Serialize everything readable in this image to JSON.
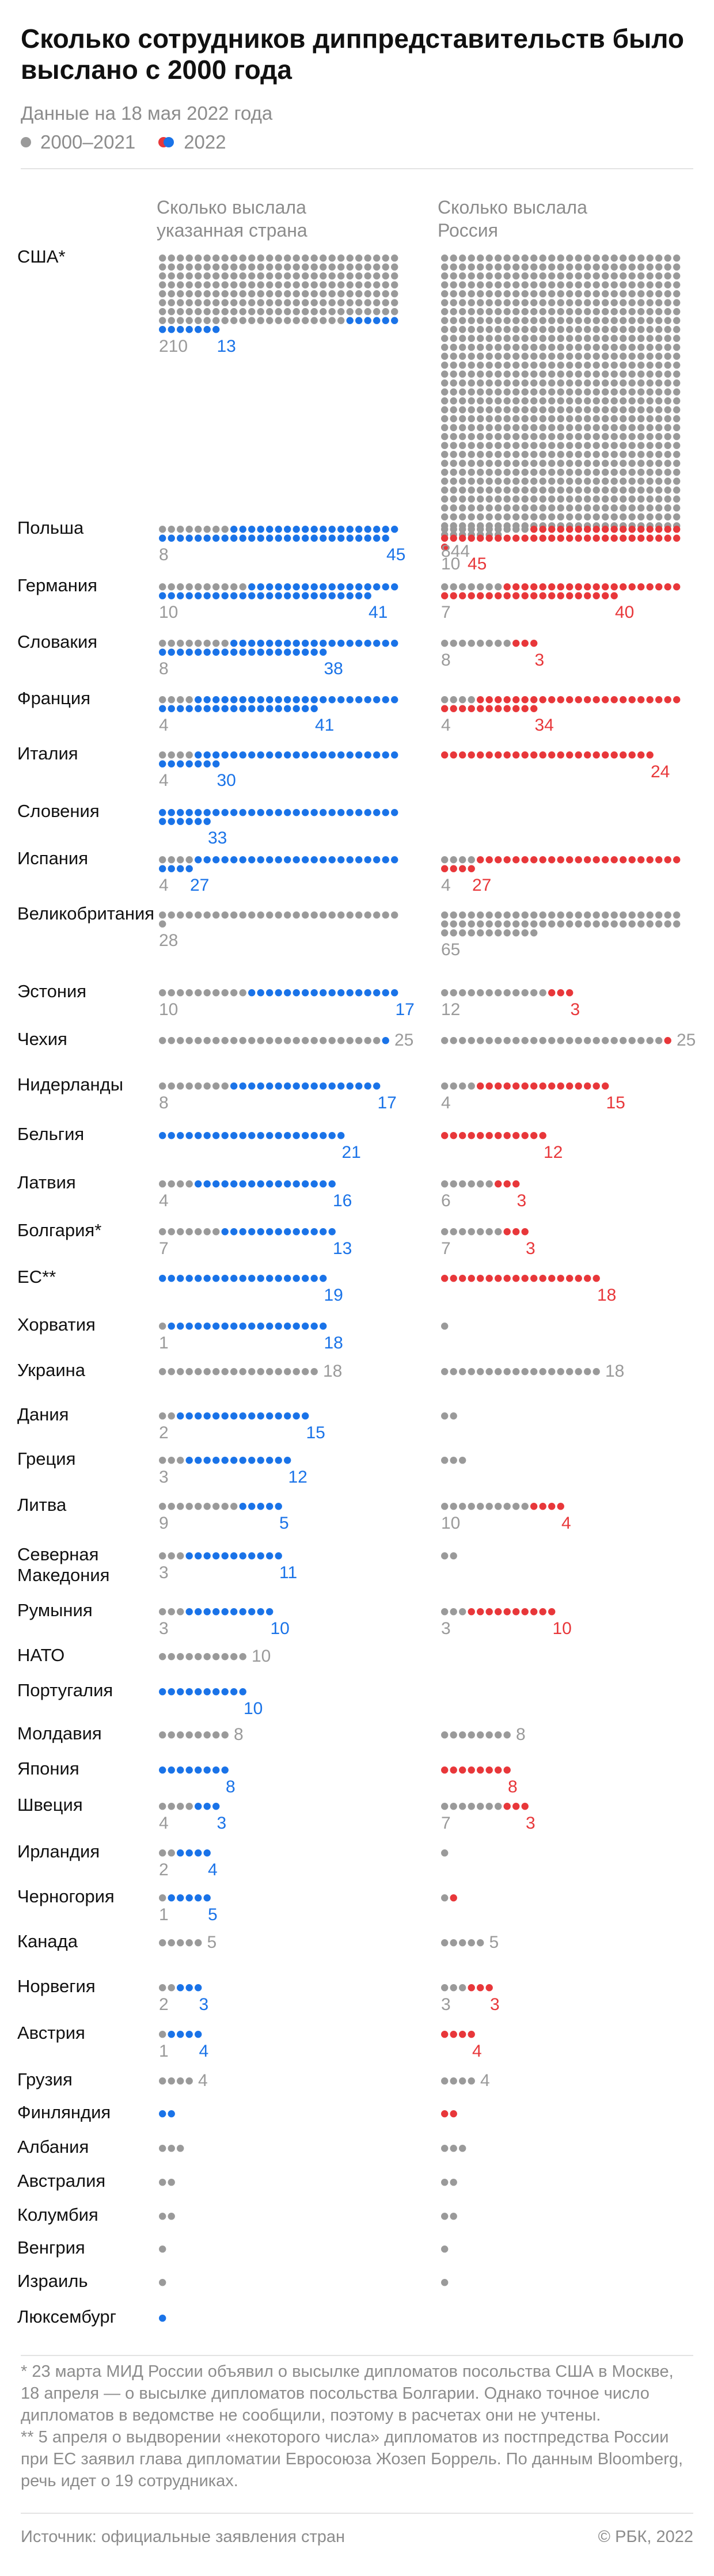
{
  "title": "Сколько сотрудников диппредставительств было выслано с 2000 года",
  "subtitle": "Данные на 18 мая 2022 года",
  "legend": {
    "old": "2000–2021",
    "new": "2022"
  },
  "columns": {
    "left": "Сколько выслала указанная страна",
    "right": "Сколько выслала Россия"
  },
  "colors": {
    "old": "#9a9a9a",
    "blue": "#1a73e8",
    "red": "#e8373a"
  },
  "chart_data": {
    "type": "table",
    "series": [
      {
        "name": "2000–2021"
      },
      {
        "name": "2022"
      }
    ],
    "rows": [
      {
        "country": "США*",
        "left": [
          210,
          13
        ],
        "right": [
          844,
          0
        ]
      },
      {
        "country": "Польша",
        "left": [
          8,
          45
        ],
        "right": [
          10,
          45
        ]
      },
      {
        "country": "Германия",
        "left": [
          10,
          41
        ],
        "right": [
          7,
          40
        ]
      },
      {
        "country": "Словакия",
        "left": [
          8,
          38
        ],
        "right": [
          8,
          3
        ]
      },
      {
        "country": "Франция",
        "left": [
          4,
          41
        ],
        "right": [
          4,
          34
        ]
      },
      {
        "country": "Италия",
        "left": [
          4,
          30
        ],
        "right": [
          0,
          24
        ]
      },
      {
        "country": "Словения",
        "left": [
          0,
          33
        ],
        "right": null
      },
      {
        "country": "Испания",
        "left": [
          4,
          27
        ],
        "right": [
          4,
          27
        ]
      },
      {
        "country": "Великобритания",
        "left": [
          28,
          0
        ],
        "right": [
          65,
          0
        ]
      },
      {
        "country": "Эстония",
        "left": [
          10,
          17
        ],
        "right": [
          12,
          3
        ]
      },
      {
        "country": "Чехия",
        "left": [
          25,
          1
        ],
        "right": [
          25,
          1
        ]
      },
      {
        "country": "Нидерланды",
        "left": [
          8,
          17
        ],
        "right": [
          4,
          15
        ]
      },
      {
        "country": "Бельгия",
        "left": [
          0,
          21
        ],
        "right": [
          0,
          12
        ]
      },
      {
        "country": "Латвия",
        "left": [
          4,
          16
        ],
        "right": [
          6,
          3
        ]
      },
      {
        "country": "Болгария*",
        "left": [
          7,
          13
        ],
        "right": [
          7,
          3
        ]
      },
      {
        "country": "ЕС**",
        "left": [
          0,
          19
        ],
        "right": [
          0,
          18
        ]
      },
      {
        "country": "Хорватия",
        "left": [
          1,
          18
        ],
        "right": [
          1,
          0
        ]
      },
      {
        "country": "Украина",
        "left": [
          18,
          0
        ],
        "right": [
          18,
          0
        ]
      },
      {
        "country": "Дания",
        "left": [
          2,
          15
        ],
        "right": [
          2,
          0
        ]
      },
      {
        "country": "Греция",
        "left": [
          3,
          12
        ],
        "right": [
          3,
          0
        ]
      },
      {
        "country": "Литва",
        "left": [
          9,
          5
        ],
        "right": [
          10,
          4
        ]
      },
      {
        "country": "Северная Македония",
        "left": [
          3,
          11
        ],
        "right": [
          2,
          0
        ]
      },
      {
        "country": "Румыния",
        "left": [
          3,
          10
        ],
        "right": [
          3,
          10
        ]
      },
      {
        "country": "НАТО",
        "left": [
          10,
          0
        ],
        "right": null
      },
      {
        "country": "Португалия",
        "left": [
          0,
          10
        ],
        "right": null
      },
      {
        "country": "Молдавия",
        "left": [
          8,
          0
        ],
        "right": [
          8,
          0
        ]
      },
      {
        "country": "Япония",
        "left": [
          0,
          8
        ],
        "right": [
          0,
          8
        ]
      },
      {
        "country": "Швеция",
        "left": [
          4,
          3
        ],
        "right": [
          7,
          3
        ]
      },
      {
        "country": "Ирландия",
        "left": [
          2,
          4
        ],
        "right": [
          1,
          0
        ]
      },
      {
        "country": "Черногория",
        "left": [
          1,
          5
        ],
        "right": [
          1,
          1
        ]
      },
      {
        "country": "Канада",
        "left": [
          5,
          0
        ],
        "right": [
          5,
          0
        ]
      },
      {
        "country": "Норвегия",
        "left": [
          2,
          3
        ],
        "right": [
          3,
          3
        ]
      },
      {
        "country": "Австрия",
        "left": [
          1,
          4
        ],
        "right": [
          0,
          4
        ]
      },
      {
        "country": "Грузия",
        "left": [
          4,
          0
        ],
        "right": [
          4,
          0
        ]
      },
      {
        "country": "Финляндия",
        "left": [
          0,
          2
        ],
        "right": [
          0,
          2
        ]
      },
      {
        "country": "Албания",
        "left": [
          3,
          0
        ],
        "right": [
          3,
          0
        ]
      },
      {
        "country": "Австралия",
        "left": [
          2,
          0
        ],
        "right": [
          2,
          0
        ]
      },
      {
        "country": "Колумбия",
        "left": [
          2,
          0
        ],
        "right": [
          2,
          0
        ]
      },
      {
        "country": "Венгрия",
        "left": [
          1,
          0
        ],
        "right": [
          1,
          0
        ]
      },
      {
        "country": "Израиль",
        "left": [
          1,
          0
        ],
        "right": [
          1,
          0
        ]
      },
      {
        "country": "Люксембург",
        "left": [
          0,
          1
        ],
        "right": null
      }
    ],
    "labels": {
      "США*": {
        "left": [
          "210",
          "13"
        ],
        "right": [
          "844",
          ""
        ]
      },
      "Польша": {
        "left": [
          "8",
          "45"
        ],
        "right": [
          "10",
          "45"
        ]
      },
      "Германия": {
        "left": [
          "10",
          "41"
        ],
        "right": [
          "7",
          "40"
        ]
      },
      "Словакия": {
        "left": [
          "8",
          "38"
        ],
        "right": [
          "8",
          "3"
        ]
      },
      "Франция": {
        "left": [
          "4",
          "41"
        ],
        "right": [
          "4",
          "34"
        ]
      },
      "Италия": {
        "left": [
          "4",
          "30"
        ],
        "right": [
          "",
          "24"
        ]
      },
      "Словения": {
        "left": [
          "",
          "33"
        ],
        "right": null
      },
      "Испания": {
        "left": [
          "4",
          "27"
        ],
        "right": [
          "4",
          "27"
        ]
      },
      "Великобритания": {
        "left": [
          "28",
          ""
        ],
        "right": [
          "65",
          ""
        ]
      },
      "Эстония": {
        "left": [
          "10",
          "17"
        ],
        "right": [
          "12",
          "3"
        ]
      },
      "Чехия": {
        "left": [
          "25",
          ""
        ],
        "right": [
          "25",
          ""
        ]
      },
      "Нидерланды": {
        "left": [
          "8",
          "17"
        ],
        "right": [
          "4",
          "15"
        ]
      },
      "Бельгия": {
        "left": [
          "",
          "21"
        ],
        "right": [
          "",
          "12"
        ]
      },
      "Латвия": {
        "left": [
          "4",
          "16"
        ],
        "right": [
          "6",
          "3"
        ]
      },
      "Болгария*": {
        "left": [
          "7",
          "13"
        ],
        "right": [
          "7",
          "3"
        ]
      },
      "ЕС**": {
        "left": [
          "",
          "19"
        ],
        "right": [
          "",
          "18"
        ]
      },
      "Хорватия": {
        "left": [
          "1",
          "18"
        ],
        "right": [
          "",
          ""
        ]
      },
      "Украина": {
        "left": [
          "18",
          ""
        ],
        "right": [
          "18",
          ""
        ]
      },
      "Дания": {
        "left": [
          "2",
          "15"
        ],
        "right": [
          "",
          ""
        ]
      },
      "Греция": {
        "left": [
          "3",
          "12"
        ],
        "right": [
          "",
          ""
        ]
      },
      "Литва": {
        "left": [
          "9",
          "5"
        ],
        "right": [
          "10",
          "4"
        ]
      },
      "Северная Македония": {
        "left": [
          "3",
          "11"
        ],
        "right": [
          "",
          ""
        ]
      },
      "Румыния": {
        "left": [
          "3",
          "10"
        ],
        "right": [
          "3",
          "10"
        ]
      },
      "НАТО": {
        "left": [
          "10",
          ""
        ],
        "right": null
      },
      "Португалия": {
        "left": [
          "",
          "10"
        ],
        "right": null
      },
      "Молдавия": {
        "left": [
          "8",
          ""
        ],
        "right": [
          "8",
          ""
        ]
      },
      "Япония": {
        "left": [
          "",
          "8"
        ],
        "right": [
          "",
          "8"
        ]
      },
      "Швеция": {
        "left": [
          "4",
          "3"
        ],
        "right": [
          "7",
          "3"
        ]
      },
      "Ирландия": {
        "left": [
          "2",
          "4"
        ],
        "right": [
          "",
          ""
        ]
      },
      "Черногория": {
        "left": [
          "1",
          "5"
        ],
        "right": [
          "",
          ""
        ]
      },
      "Канада": {
        "left": [
          "5",
          ""
        ],
        "right": [
          "5",
          ""
        ]
      },
      "Норвегия": {
        "left": [
          "2",
          "3"
        ],
        "right": [
          "3",
          "3"
        ]
      },
      "Австрия": {
        "left": [
          "1",
          "4"
        ],
        "right": [
          "",
          "4"
        ]
      },
      "Грузия": {
        "left": [
          "4",
          ""
        ],
        "right": [
          "4",
          ""
        ]
      },
      "Финляндия": {
        "left": [
          "",
          ""
        ],
        "right": [
          "",
          ""
        ]
      },
      "Албания": {
        "left": [
          "",
          ""
        ],
        "right": [
          "",
          ""
        ]
      },
      "Австралия": {
        "left": [
          "",
          ""
        ],
        "right": [
          "",
          ""
        ]
      },
      "Колумбия": {
        "left": [
          "",
          ""
        ],
        "right": [
          "",
          ""
        ]
      },
      "Венгрия": {
        "left": [
          "",
          ""
        ],
        "right": [
          "",
          ""
        ]
      },
      "Израиль": {
        "left": [
          "",
          ""
        ],
        "right": [
          "",
          ""
        ]
      },
      "Люксембург": {
        "left": [
          "",
          ""
        ],
        "right": null
      }
    }
  },
  "notes": [
    "* 23 марта МИД России объявил о высылке дипломатов посольства США в Москве, 18 апреля — о высылке дипломатов посольства Болгарии. Однако точное число дипломатов в ведомстве не сообщили, поэтому в расчетах они не учтены.",
    "** 5 апреля о выдворении «некоторого числа» дипломатов из постпредства России при ЕС заявил глава дипломатии Евросоюза Жозеп Боррель. По данным Bloomberg, речь идет о 19 сотрудниках."
  ],
  "footer": {
    "source": "Источник: официальные заявления стран",
    "copyright": "© РБК, 2022"
  }
}
